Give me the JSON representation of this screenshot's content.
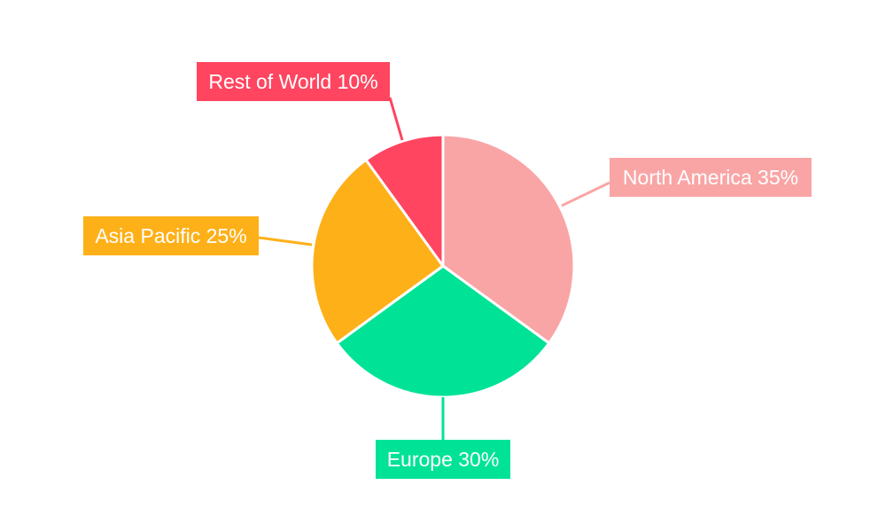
{
  "chart_data": {
    "type": "pie",
    "title": "",
    "start_angle": "12 o'clock",
    "direction": "clockwise",
    "slices": [
      {
        "name": "North America",
        "value": 35,
        "color": "#F9A5A6"
      },
      {
        "name": "Europe",
        "value": 30,
        "color": "#00E396"
      },
      {
        "name": "Asia Pacific",
        "value": 25,
        "color": "#FEB019"
      },
      {
        "name": "Rest of World",
        "value": 10,
        "color": "#FF4560"
      }
    ],
    "value_suffix": "%",
    "legend": "none",
    "data_labels": "outside-with-leader-lines"
  }
}
